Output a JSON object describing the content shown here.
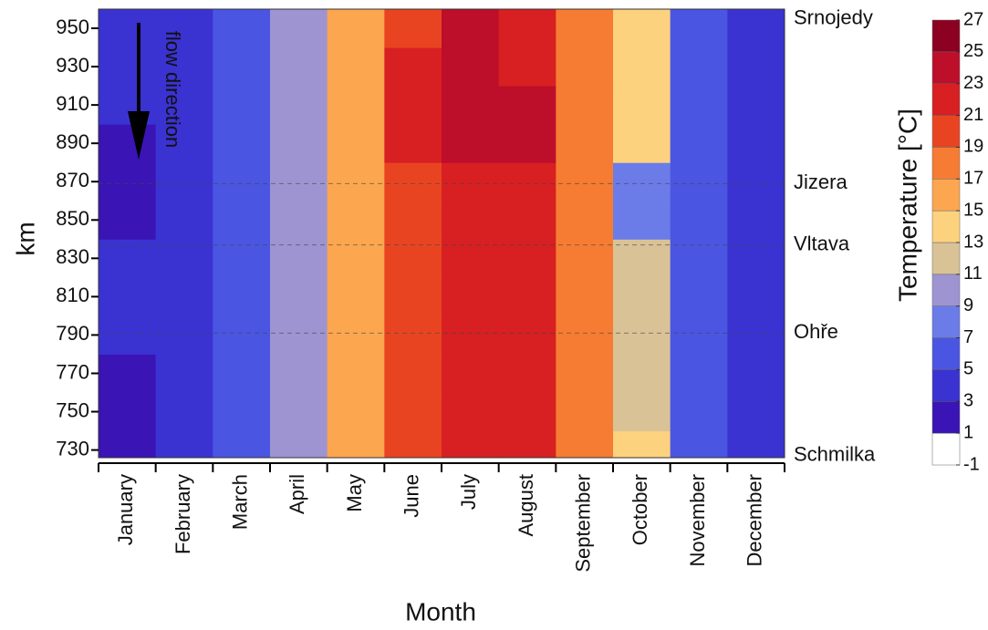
{
  "chart_data": {
    "type": "heatmap",
    "x_label": "Month",
    "y_label": "km",
    "colorbar_label": "Temperature [°C]",
    "annotation": "flow direction",
    "categories": [
      "January",
      "February",
      "March",
      "April",
      "May",
      "June",
      "July",
      "August",
      "September",
      "October",
      "November",
      "December"
    ],
    "y": [
      730,
      750,
      770,
      790,
      810,
      830,
      850,
      870,
      890,
      910,
      930,
      950
    ],
    "values": [
      [
        2.5,
        3.5,
        5.5,
        9.5,
        15.5,
        19.5,
        22,
        21.5,
        17.5,
        13,
        6,
        3.5
      ],
      [
        2.5,
        3.5,
        5.5,
        9.5,
        15,
        19.5,
        22,
        21.5,
        17.5,
        12.5,
        6,
        3.5
      ],
      [
        2.5,
        3.5,
        5.5,
        9.5,
        15,
        19.5,
        22,
        21.5,
        17,
        12.5,
        6,
        3.5
      ],
      [
        3,
        3.5,
        5.5,
        9.5,
        15,
        19,
        21.5,
        21,
        17,
        12.5,
        6,
        3.5
      ],
      [
        3,
        3.5,
        5.5,
        9.5,
        15,
        19,
        21.5,
        21,
        17,
        12,
        6,
        3.5
      ],
      [
        3,
        3.5,
        5.5,
        9.5,
        15,
        19,
        21.5,
        21,
        17,
        12,
        6,
        3.5
      ],
      [
        2,
        3,
        5.5,
        10,
        16,
        20,
        22.5,
        22,
        18,
        8,
        6,
        3
      ],
      [
        2,
        3,
        5.5,
        10,
        16,
        20,
        22.5,
        22,
        18,
        8,
        6,
        3
      ],
      [
        2.5,
        3.5,
        6,
        10.5,
        16.5,
        21,
        23.5,
        23,
        18.5,
        13,
        6.5,
        3.5
      ],
      [
        3,
        4,
        6,
        10.5,
        16.5,
        21,
        23.5,
        23,
        18.5,
        13,
        6.5,
        4
      ],
      [
        3,
        4,
        6,
        10.5,
        16.5,
        21,
        23.5,
        22.5,
        18.5,
        13,
        6.5,
        4
      ],
      [
        3,
        4,
        6,
        10.5,
        16.5,
        20.5,
        23,
        22.5,
        18,
        13,
        6.5,
        4
      ]
    ],
    "ylim": [
      726,
      960
    ],
    "yticks": [
      730,
      750,
      770,
      790,
      810,
      830,
      850,
      870,
      890,
      910,
      930,
      950
    ],
    "tributaries": [
      {
        "name": "Srnojedy",
        "km": 955
      },
      {
        "name": "Jizera",
        "km": 869
      },
      {
        "name": "Vltava",
        "km": 837
      },
      {
        "name": "Ohře",
        "km": 791
      },
      {
        "name": "Schmilka",
        "km": 727
      }
    ],
    "clim": [
      -1,
      27
    ],
    "colorbar_ticks": [
      -1,
      1,
      3,
      5,
      7,
      9,
      11,
      13,
      15,
      17,
      19,
      21,
      23,
      25,
      27
    ],
    "colors": [
      "#ffffff",
      "#3a14b4",
      "#3b32d2",
      "#4a56e2",
      "#6b7ce8",
      "#9e94d2",
      "#d9c296",
      "#fdd27e",
      "#fca650",
      "#f57c32",
      "#e94422",
      "#d81f22",
      "#bd0e2a",
      "#8c0022"
    ]
  }
}
